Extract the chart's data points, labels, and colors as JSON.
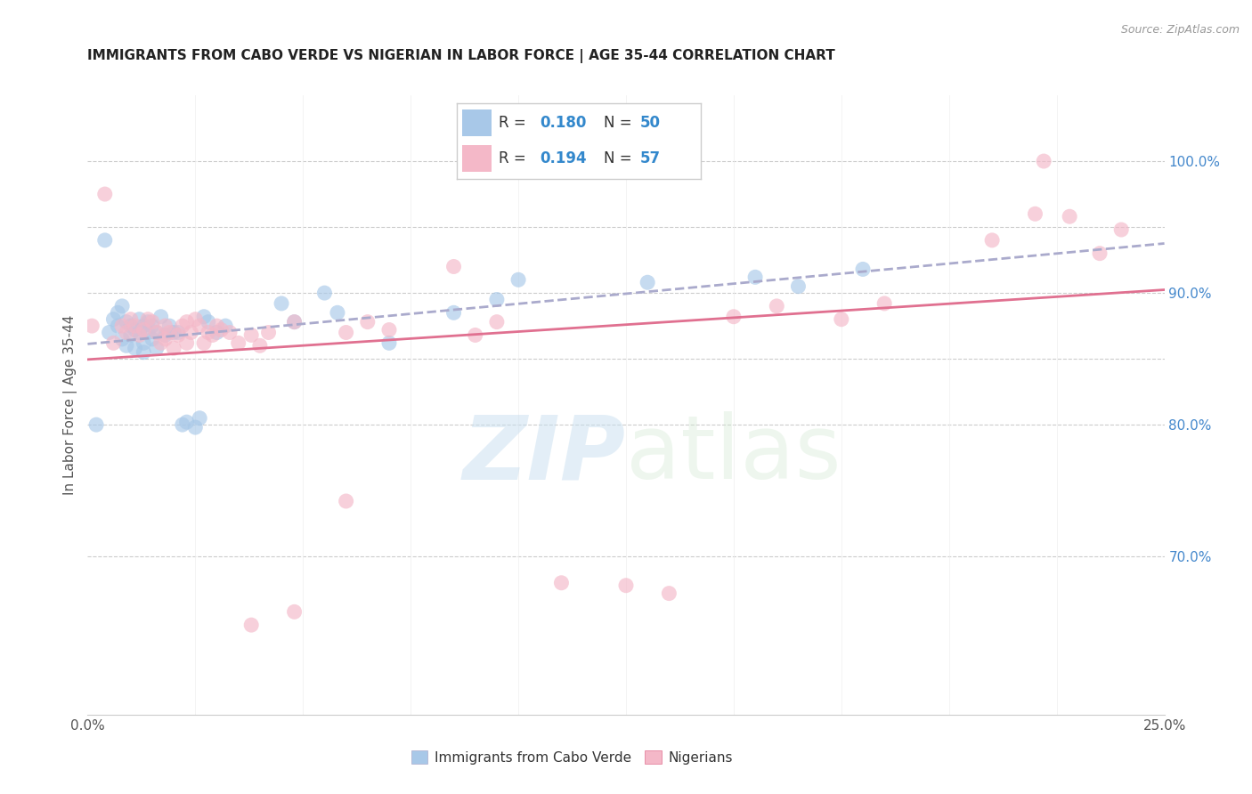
{
  "title": "IMMIGRANTS FROM CABO VERDE VS NIGERIAN IN LABOR FORCE | AGE 35-44 CORRELATION CHART",
  "source": "Source: ZipAtlas.com",
  "ylabel": "In Labor Force | Age 35-44",
  "right_yticks": [
    70.0,
    80.0,
    90.0,
    100.0
  ],
  "watermark_zip": "ZIP",
  "watermark_atlas": "atlas",
  "color_cabo": "#a8c8e8",
  "color_nigerian": "#f4b8c8",
  "color_cabo_line": "#aaaacc",
  "color_nigerian_line": "#e07090",
  "color_right_axis": "#4488cc",
  "cabo_x": [
    0.002,
    0.004,
    0.005,
    0.006,
    0.007,
    0.007,
    0.008,
    0.008,
    0.009,
    0.009,
    0.01,
    0.01,
    0.011,
    0.011,
    0.012,
    0.012,
    0.013,
    0.013,
    0.013,
    0.014,
    0.014,
    0.015,
    0.015,
    0.016,
    0.016,
    0.017,
    0.018,
    0.019,
    0.02,
    0.021,
    0.022,
    0.023,
    0.025,
    0.026,
    0.027,
    0.028,
    0.03,
    0.032,
    0.045,
    0.048,
    0.055,
    0.058,
    0.07,
    0.085,
    0.095,
    0.1,
    0.13,
    0.155,
    0.165,
    0.18
  ],
  "cabo_y": [
    0.8,
    0.94,
    0.87,
    0.88,
    0.885,
    0.875,
    0.89,
    0.865,
    0.878,
    0.86,
    0.875,
    0.868,
    0.872,
    0.858,
    0.88,
    0.87,
    0.875,
    0.862,
    0.855,
    0.87,
    0.878,
    0.865,
    0.875,
    0.87,
    0.858,
    0.882,
    0.868,
    0.875,
    0.87,
    0.87,
    0.8,
    0.802,
    0.798,
    0.805,
    0.882,
    0.878,
    0.87,
    0.875,
    0.892,
    0.878,
    0.9,
    0.885,
    0.862,
    0.885,
    0.895,
    0.91,
    0.908,
    0.912,
    0.905,
    0.918
  ],
  "nigerian_x": [
    0.001,
    0.004,
    0.006,
    0.008,
    0.009,
    0.01,
    0.011,
    0.012,
    0.013,
    0.014,
    0.015,
    0.016,
    0.017,
    0.018,
    0.018,
    0.019,
    0.02,
    0.021,
    0.022,
    0.023,
    0.023,
    0.024,
    0.025,
    0.026,
    0.027,
    0.028,
    0.029,
    0.03,
    0.031,
    0.033,
    0.035,
    0.038,
    0.04,
    0.042,
    0.048,
    0.06,
    0.065,
    0.07,
    0.085,
    0.09,
    0.095,
    0.11,
    0.125,
    0.135,
    0.15,
    0.16,
    0.175,
    0.185,
    0.21,
    0.22,
    0.222,
    0.228,
    0.235,
    0.24,
    0.06,
    0.048,
    0.038
  ],
  "nigerian_y": [
    0.875,
    0.975,
    0.862,
    0.875,
    0.87,
    0.88,
    0.875,
    0.868,
    0.872,
    0.88,
    0.878,
    0.87,
    0.862,
    0.875,
    0.865,
    0.87,
    0.858,
    0.868,
    0.875,
    0.862,
    0.878,
    0.87,
    0.88,
    0.875,
    0.862,
    0.87,
    0.868,
    0.875,
    0.872,
    0.87,
    0.862,
    0.868,
    0.86,
    0.87,
    0.878,
    0.87,
    0.878,
    0.872,
    0.92,
    0.868,
    0.878,
    0.68,
    0.678,
    0.672,
    0.882,
    0.89,
    0.88,
    0.892,
    0.94,
    0.96,
    1.0,
    0.958,
    0.93,
    0.948,
    0.742,
    0.658,
    0.648
  ],
  "xlim": [
    0.0,
    0.25
  ],
  "ylim": [
    0.58,
    1.05
  ],
  "xtick_positions": [
    0.0,
    0.025,
    0.05,
    0.075,
    0.1,
    0.125,
    0.15,
    0.175,
    0.2,
    0.225,
    0.25
  ]
}
